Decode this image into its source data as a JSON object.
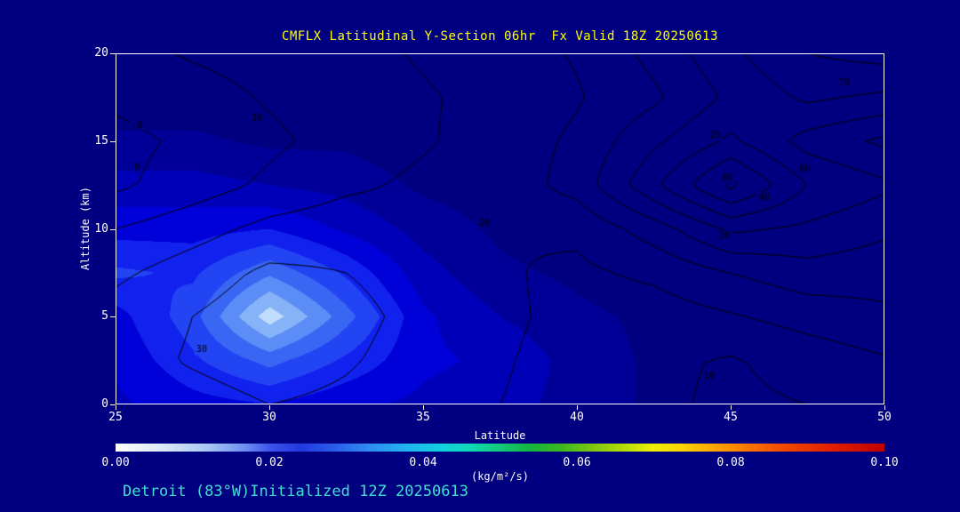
{
  "page": {
    "footer": "Detroit (83°W)Initialized 12Z 20250613",
    "colors": {
      "background": "#000080",
      "frame": "#ffffff",
      "title": "#ffff00",
      "axis_text": "#ffffff",
      "footer": "#40e0d0"
    }
  },
  "chart_data": {
    "type": "heatmap",
    "title": "CMFLX Latitudinal Y-Section 06hr  Fx Valid 18Z 20250613",
    "xlabel": "Latitude",
    "ylabel": "Altitude (km)",
    "xlim": [
      25,
      50
    ],
    "ylim": [
      0,
      20
    ],
    "xticks": [
      25,
      30,
      35,
      40,
      45,
      50
    ],
    "yticks": [
      0,
      5,
      10,
      15,
      20
    ],
    "grid_lats": [
      25,
      27.5,
      30,
      32.5,
      35,
      37.5,
      40,
      42.5,
      45,
      47.5,
      50
    ],
    "grid_alts_km": [
      0,
      2.5,
      5,
      7.5,
      10,
      12.5,
      15,
      17.5,
      20
    ],
    "fill_field_kg_m2_s": [
      [
        0.007,
        0.009,
        0.01,
        0.008,
        0.007,
        0.006,
        0.004,
        0.002,
        0.001,
        0.001,
        0.001
      ],
      [
        0.008,
        0.012,
        0.016,
        0.012,
        0.008,
        0.007,
        0.004,
        0.002,
        0.001,
        0.0,
        0.0
      ],
      [
        0.009,
        0.014,
        0.024,
        0.016,
        0.008,
        0.005,
        0.003,
        0.002,
        0.001,
        0.0,
        0.0
      ],
      [
        0.013,
        0.012,
        0.017,
        0.012,
        0.006,
        0.003,
        0.002,
        0.001,
        0.0,
        0.0,
        0.0
      ],
      [
        0.009,
        0.009,
        0.01,
        0.007,
        0.004,
        0.002,
        0.001,
        0.001,
        0.0,
        0.0,
        0.0
      ],
      [
        0.006,
        0.006,
        0.005,
        0.004,
        0.002,
        0.001,
        0.001,
        0.0,
        0.0,
        0.0,
        0.0
      ],
      [
        0.003,
        0.003,
        0.002,
        0.002,
        0.001,
        0.001,
        0.0,
        0.0,
        0.0,
        0.0,
        0.0
      ],
      [
        0.001,
        0.001,
        0.001,
        0.001,
        0.0,
        0.0,
        0.0,
        0.0,
        0.0,
        0.0,
        0.0
      ],
      [
        0.0,
        0.0,
        0.0,
        0.0,
        0.0,
        0.0,
        0.0,
        0.0,
        0.0,
        0.0,
        0.0
      ]
    ],
    "fill_levels": [
      0.0025,
      0.005,
      0.0075,
      0.01,
      0.0125,
      0.015,
      0.0175,
      0.02,
      0.0225
    ],
    "fill_colors": [
      "#000080",
      "#000099",
      "#0000b8",
      "#0000d8",
      "#1222ee",
      "#2244f2",
      "#3a66f4",
      "#5c8cf6",
      "#86b2f8",
      "#c0dcfc"
    ],
    "line_field": [
      [
        22,
        26,
        30,
        28,
        24,
        20,
        16,
        12,
        8,
        10,
        14
      ],
      [
        26,
        31,
        35,
        31,
        26,
        21,
        16,
        12,
        9,
        14,
        19
      ],
      [
        24,
        30,
        36,
        33,
        27,
        22,
        17,
        15,
        19,
        24,
        28
      ],
      [
        18,
        25,
        32,
        30,
        26,
        21,
        18,
        22,
        30,
        36,
        34
      ],
      [
        10,
        16,
        23,
        26,
        24,
        20,
        22,
        35,
        52,
        48,
        42
      ],
      [
        -2,
        5,
        12,
        18,
        22,
        24,
        34,
        58,
        83,
        60,
        52
      ],
      [
        -3,
        2,
        8,
        14,
        19,
        24,
        32,
        48,
        62,
        46,
        38
      ],
      [
        2,
        6,
        11,
        15,
        19,
        23,
        29,
        38,
        52,
        62,
        58
      ],
      [
        7,
        11,
        14,
        17,
        21,
        25,
        31,
        43,
        58,
        70,
        74
      ]
    ],
    "line_levels": [
      0,
      10,
      20,
      30,
      40,
      50,
      60,
      70,
      80
    ],
    "line_color": "#000000",
    "contour_labels": [
      {
        "text": "-0",
        "lat": 25.7,
        "alt": 15.9
      },
      {
        "text": "0",
        "lat": 25.7,
        "alt": 13.5
      },
      {
        "text": "10",
        "lat": 29.6,
        "alt": 16.3
      },
      {
        "text": "20",
        "lat": 44.5,
        "alt": 15.3
      },
      {
        "text": "20",
        "lat": 37.0,
        "alt": 10.3
      },
      {
        "text": "30",
        "lat": 27.8,
        "alt": 3.1
      },
      {
        "text": "30",
        "lat": 44.8,
        "alt": 9.6
      },
      {
        "text": "40",
        "lat": 46.1,
        "alt": 11.8
      },
      {
        "text": "60",
        "lat": 47.4,
        "alt": 13.4
      },
      {
        "text": "70",
        "lat": 48.7,
        "alt": 18.3
      },
      {
        "text": "80",
        "lat": 44.9,
        "alt": 12.9
      },
      {
        "text": "10",
        "lat": 44.3,
        "alt": 1.6
      }
    ],
    "colorbar": {
      "min": 0.0,
      "max": 0.1,
      "ticks": [
        "0.00",
        "0.02",
        "0.04",
        "0.06",
        "0.08",
        "0.10"
      ],
      "units": "(kg/m²/s)",
      "stops": [
        [
          0.0,
          "#ffffff"
        ],
        [
          0.06,
          "#dce8fa"
        ],
        [
          0.12,
          "#a8c8f4"
        ],
        [
          0.17,
          "#6a8cf0"
        ],
        [
          0.2,
          "#3b55e8"
        ],
        [
          0.24,
          "#2338e2"
        ],
        [
          0.28,
          "#2858ea"
        ],
        [
          0.33,
          "#2f8cf2"
        ],
        [
          0.38,
          "#1fb4ee"
        ],
        [
          0.42,
          "#12cfe0"
        ],
        [
          0.46,
          "#10d8b8"
        ],
        [
          0.5,
          "#12c878"
        ],
        [
          0.54,
          "#16b43c"
        ],
        [
          0.58,
          "#3cb81e"
        ],
        [
          0.62,
          "#7cc810"
        ],
        [
          0.66,
          "#b4dc06"
        ],
        [
          0.7,
          "#f0ee04"
        ],
        [
          0.74,
          "#fcd002"
        ],
        [
          0.78,
          "#fca400"
        ],
        [
          0.82,
          "#f87800"
        ],
        [
          0.87,
          "#f04800"
        ],
        [
          0.93,
          "#e02000"
        ],
        [
          1.0,
          "#c00000"
        ]
      ]
    }
  }
}
